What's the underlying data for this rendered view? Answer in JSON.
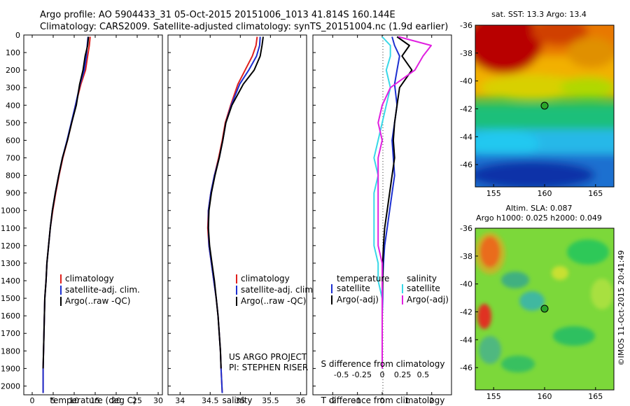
{
  "header": {
    "line1": "Argo profile: AO 5904433_31 05-Oct-2015 20151006_1013 41.814S 160.144E",
    "line2": "Climatology: CARS2009. Satellite-adjusted climatology: synTS_20151004.nc (1.9d earlier)"
  },
  "colors": {
    "climatology": "#e0201c",
    "satellite": "#1c2fd0",
    "argo": "#000000",
    "sat_salinity": "#38d8e8",
    "argo_salinity": "#e020e0"
  },
  "legend_temp": {
    "items": [
      "climatology",
      "satellite-adj. clim.",
      "Argo(..raw -QC)"
    ]
  },
  "legend_sal": {
    "items": [
      "climatology",
      "satellite-adj. clim.",
      "Argo(..raw -QC)"
    ]
  },
  "legend_diff": {
    "temp_title": "temperature",
    "sal_title": "salinity",
    "items": [
      "satellite",
      "Argo(-adj)",
      "satellite",
      "Argo(-adj)"
    ]
  },
  "project": {
    "line1": "US ARGO PROJECT",
    "line2": "PI: STEPHEN RISER"
  },
  "map_sst": {
    "title": "sat. SST: 13.3 Argo: 13.4"
  },
  "map_sla": {
    "title1": "Altim. SLA: 0.087",
    "title2": "Argo h1000: 0.025 h2000: 0.049"
  },
  "watermark": "©IMOS 11-Oct-2015 20:41:49",
  "chart_data": [
    {
      "type": "line",
      "xlabel": "temperature (deg C)",
      "ylabel": "",
      "xlim": [
        -2,
        31
      ],
      "ylim": [
        2050,
        0
      ],
      "xticks": [
        0,
        5,
        10,
        15,
        20,
        25,
        30
      ],
      "yticks": [
        0,
        100,
        200,
        300,
        400,
        500,
        600,
        700,
        800,
        900,
        1000,
        1100,
        1200,
        1300,
        1400,
        1500,
        1600,
        1700,
        1800,
        1900,
        2000
      ],
      "series": [
        {
          "name": "climatology",
          "color": "#e0201c",
          "x": [
            13.8,
            13.6,
            13.2,
            12.7,
            11.6,
            10.3,
            9.4,
            8.4,
            7.3,
            6.4,
            5.6,
            4.9,
            4.3,
            3.9,
            3.5,
            3.3,
            3.0,
            2.9,
            2.8,
            2.7,
            2.6,
            2.6
          ],
          "y": [
            10,
            60,
            120,
            200,
            280,
            400,
            500,
            600,
            700,
            800,
            900,
            1000,
            1100,
            1200,
            1300,
            1400,
            1500,
            1600,
            1700,
            1800,
            1900,
            2040
          ]
        },
        {
          "name": "satellite-adj. clim.",
          "color": "#1c2fd0",
          "x": [
            13.3,
            13.1,
            12.9,
            12.4,
            11.4,
            10.3,
            9.3,
            8.3,
            7.2,
            6.3,
            5.5,
            4.8,
            4.3,
            3.9,
            3.5,
            3.3,
            3.0,
            2.9,
            2.8,
            2.7,
            2.6,
            2.6
          ],
          "y": [
            10,
            60,
            120,
            200,
            280,
            400,
            500,
            600,
            700,
            800,
            900,
            1000,
            1100,
            1200,
            1300,
            1400,
            1500,
            1600,
            1700,
            1800,
            1900,
            2040
          ]
        },
        {
          "name": "Argo(..raw -QC)",
          "color": "#000000",
          "x": [
            13.4,
            13.2,
            12.6,
            12.1,
            11.3,
            10.5,
            9.4,
            8.4,
            7.2,
            6.3,
            5.5,
            4.8,
            4.3,
            3.9,
            3.5,
            3.3,
            3.0,
            2.9,
            2.8,
            2.7,
            2.6
          ],
          "y": [
            10,
            60,
            120,
            200,
            280,
            400,
            500,
            600,
            700,
            800,
            900,
            1000,
            1100,
            1200,
            1300,
            1400,
            1500,
            1600,
            1700,
            1800,
            1900
          ]
        }
      ]
    },
    {
      "type": "line",
      "xlabel": "salinity",
      "ylabel": "",
      "xlim": [
        33.8,
        36.1
      ],
      "ylim": [
        2050,
        0
      ],
      "xticks": [
        34,
        34.5,
        35,
        35.5,
        36
      ],
      "series": [
        {
          "name": "climatology",
          "color": "#e0201c",
          "x": [
            35.28,
            35.26,
            35.2,
            35.08,
            34.96,
            34.84,
            34.75,
            34.7,
            34.64,
            34.57,
            34.51,
            34.47,
            34.46,
            34.48,
            34.52,
            34.56,
            34.6,
            34.63,
            34.65,
            34.67,
            34.68,
            34.7
          ],
          "y": [
            10,
            60,
            120,
            200,
            280,
            400,
            500,
            600,
            700,
            800,
            900,
            1000,
            1100,
            1200,
            1300,
            1400,
            1500,
            1600,
            1700,
            1800,
            1900,
            2040
          ]
        },
        {
          "name": "satellite-adj. clim.",
          "color": "#1c2fd0",
          "x": [
            35.33,
            35.32,
            35.27,
            35.14,
            34.99,
            34.85,
            34.76,
            34.71,
            34.65,
            34.57,
            34.51,
            34.47,
            34.47,
            34.48,
            34.52,
            34.56,
            34.6,
            34.63,
            34.65,
            34.67,
            34.68,
            34.7
          ],
          "y": [
            10,
            60,
            120,
            200,
            280,
            400,
            500,
            600,
            700,
            800,
            900,
            1000,
            1100,
            1200,
            1300,
            1400,
            1500,
            1600,
            1700,
            1800,
            1900,
            2040
          ]
        },
        {
          "name": "Argo(..raw -QC)",
          "color": "#000000",
          "x": [
            35.38,
            35.36,
            35.33,
            35.23,
            35.05,
            34.86,
            34.76,
            34.71,
            34.65,
            34.58,
            34.52,
            34.48,
            34.47,
            34.49,
            34.53,
            34.57,
            34.6,
            34.63,
            34.65,
            34.67,
            34.68
          ],
          "y": [
            10,
            60,
            120,
            200,
            280,
            400,
            500,
            600,
            700,
            800,
            900,
            1000,
            1100,
            1200,
            1300,
            1400,
            1500,
            1600,
            1700,
            1800,
            1900
          ]
        }
      ]
    },
    {
      "type": "line",
      "xlabel": "T difference from climatology",
      "xlabel2": "S difference from climatology",
      "xlim": [
        -2.8,
        2.8
      ],
      "ylim": [
        2050,
        0
      ],
      "xticks": [
        -2,
        -1,
        0,
        1,
        2
      ],
      "xticks2": [
        -0.5,
        -0.25,
        0,
        0.25,
        0.5
      ],
      "series": [
        {
          "name": "satellite",
          "color": "#1c2fd0",
          "x": [
            0.4,
            0.5,
            0.7,
            0.6,
            0.5,
            0.6,
            0.5,
            0.4,
            0.45,
            0.5,
            0.4,
            0.3,
            0.2,
            0.1,
            0.05,
            0.02,
            0.02,
            0.0,
            0.0,
            0.0,
            0.0
          ],
          "y": [
            10,
            60,
            120,
            200,
            280,
            400,
            500,
            600,
            700,
            800,
            900,
            1000,
            1100,
            1200,
            1300,
            1400,
            1500,
            1600,
            1700,
            1800,
            1900
          ]
        },
        {
          "name": "Argo(-adj)",
          "color": "#000000",
          "x": [
            0.6,
            1.1,
            0.8,
            1.2,
            0.7,
            0.6,
            0.5,
            0.45,
            0.5,
            0.4,
            0.3,
            0.2,
            0.1,
            0.05,
            0.02,
            0.02,
            0.0,
            0.0,
            0.0,
            0.0
          ],
          "y": [
            10,
            60,
            120,
            200,
            300,
            400,
            500,
            600,
            700,
            800,
            900,
            1000,
            1100,
            1200,
            1300,
            1400,
            1500,
            1600,
            1700,
            1900
          ]
        },
        {
          "name": "satellite",
          "color": "#38d8e8",
          "x": [
            0.0,
            0.1,
            0.1,
            0.05,
            0.1,
            0.05,
            0.0,
            -0.05,
            -0.1,
            -0.05,
            -0.1,
            -0.1,
            -0.1,
            -0.1,
            -0.05,
            -0.05,
            0.0,
            0.0,
            0.0,
            0.0
          ],
          "y": [
            10,
            60,
            120,
            200,
            300,
            400,
            500,
            600,
            700,
            800,
            900,
            1000,
            1100,
            1200,
            1300,
            1400,
            1500,
            1600,
            1700,
            1900
          ]
        },
        {
          "name": "Argo(-adj)",
          "color": "#e020e0",
          "x": [
            0.2,
            0.6,
            0.5,
            0.4,
            0.1,
            0.0,
            -0.05,
            0.0,
            -0.05,
            -0.05,
            -0.05,
            -0.05,
            -0.05,
            -0.05,
            0.0,
            0.0,
            0.0,
            0.0,
            0.0,
            0.0
          ],
          "y": [
            10,
            60,
            120,
            200,
            300,
            400,
            500,
            600,
            700,
            800,
            900,
            1000,
            1100,
            1200,
            1300,
            1400,
            1500,
            1600,
            1700,
            1900
          ]
        }
      ]
    },
    {
      "type": "heatmap",
      "title": "sat. SST: 13.3 Argo: 13.4",
      "xlim": [
        153.2,
        166.8
      ],
      "ylim": [
        -47.6,
        -36
      ],
      "xticks": [
        155,
        160,
        165
      ],
      "yticks": [
        -36,
        -38,
        -40,
        -42,
        -44,
        -46
      ],
      "argo_position": [
        160.144,
        -41.814
      ]
    },
    {
      "type": "heatmap",
      "title": "Altim. SLA: 0.087",
      "xlim": [
        153.2,
        166.8
      ],
      "ylim": [
        -47.6,
        -36
      ],
      "xticks": [
        155,
        160,
        165
      ],
      "yticks": [
        -36,
        -38,
        -40,
        -42,
        -44,
        -46
      ],
      "argo_position": [
        160.144,
        -41.814
      ]
    }
  ]
}
